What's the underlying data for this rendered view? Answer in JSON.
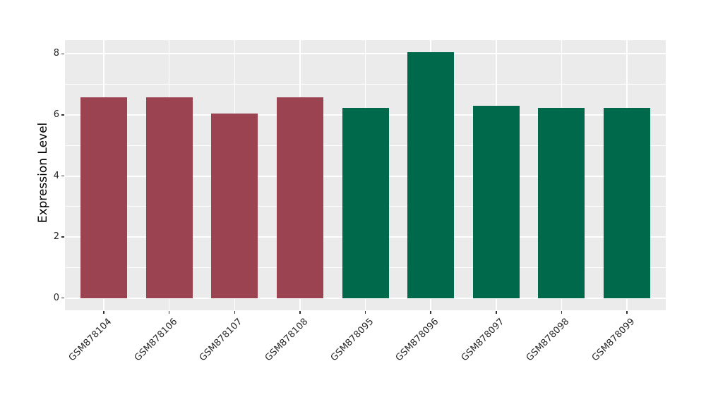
{
  "chart_data": {
    "type": "bar",
    "title": "",
    "xlabel": "",
    "ylabel": "Expression Level",
    "categories": [
      "GSM878104",
      "GSM878106",
      "GSM878107",
      "GSM878108",
      "GSM878095",
      "GSM878096",
      "GSM878097",
      "GSM878098",
      "GSM878099"
    ],
    "values": [
      6.57,
      6.57,
      6.05,
      6.57,
      6.23,
      8.05,
      6.3,
      6.23,
      6.23
    ],
    "bar_colors": [
      "#9B4350",
      "#9B4350",
      "#9B4350",
      "#9B4350",
      "#00684B",
      "#00684B",
      "#00684B",
      "#00684B",
      "#00684B"
    ],
    "yticks": [
      0,
      2,
      4,
      6,
      8
    ],
    "yticks_minor": [
      1,
      3,
      5,
      7
    ],
    "ylim": [
      -0.4,
      8.45
    ],
    "bar_width_fraction": 0.7,
    "grid": true,
    "legend_position": "none",
    "panel_background": "#EBEBEB",
    "gridline_color": "#FFFFFF",
    "tick_color": "#333333",
    "tick_label_color": "#262626"
  }
}
